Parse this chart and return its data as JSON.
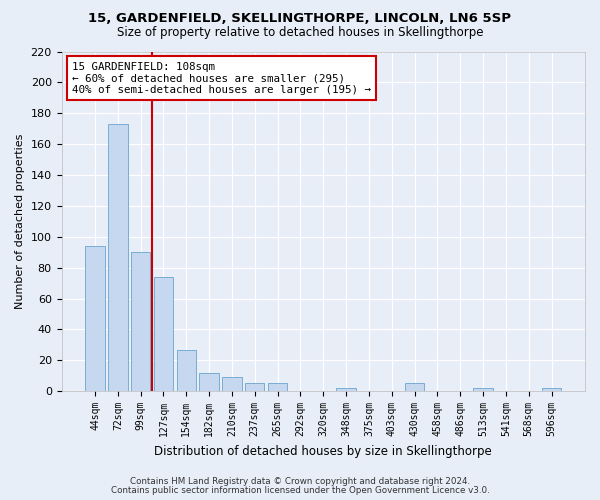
{
  "title1": "15, GARDENFIELD, SKELLINGTHORPE, LINCOLN, LN6 5SP",
  "title2": "Size of property relative to detached houses in Skellingthorpe",
  "xlabel": "Distribution of detached houses by size in Skellingthorpe",
  "ylabel": "Number of detached properties",
  "bar_labels": [
    "44sqm",
    "72sqm",
    "99sqm",
    "127sqm",
    "154sqm",
    "182sqm",
    "210sqm",
    "237sqm",
    "265sqm",
    "292sqm",
    "320sqm",
    "348sqm",
    "375sqm",
    "403sqm",
    "430sqm",
    "458sqm",
    "486sqm",
    "513sqm",
    "541sqm",
    "568sqm",
    "596sqm"
  ],
  "bar_values": [
    94,
    173,
    90,
    74,
    27,
    12,
    9,
    5,
    5,
    0,
    0,
    2,
    0,
    0,
    5,
    0,
    0,
    2,
    0,
    0,
    2
  ],
  "bar_color": "#c5d8f0",
  "bar_edge_color": "#7aadd4",
  "vline_color": "#cc0000",
  "ylim": [
    0,
    220
  ],
  "yticks": [
    0,
    20,
    40,
    60,
    80,
    100,
    120,
    140,
    160,
    180,
    200,
    220
  ],
  "annotation_title": "15 GARDENFIELD: 108sqm",
  "annotation_line1": "← 60% of detached houses are smaller (295)",
  "annotation_line2": "40% of semi-detached houses are larger (195) →",
  "footnote1": "Contains HM Land Registry data © Crown copyright and database right 2024.",
  "footnote2": "Contains public sector information licensed under the Open Government Licence v3.0.",
  "background_color": "#e8eef8"
}
